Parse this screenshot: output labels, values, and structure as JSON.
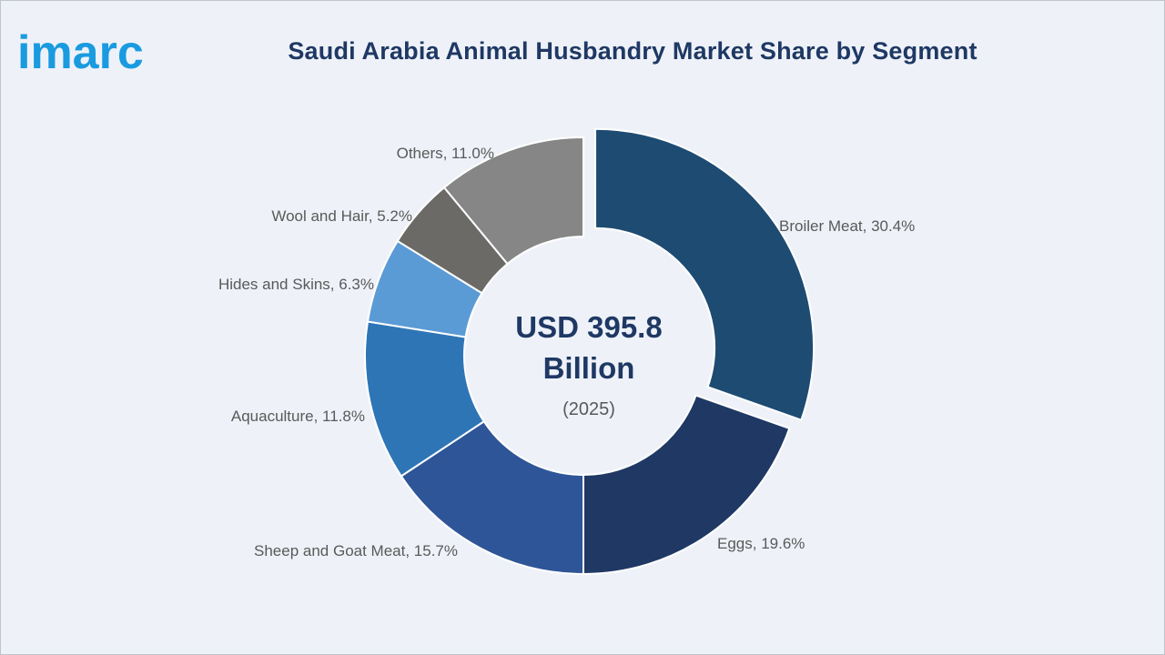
{
  "brand": {
    "logo_text": "imarc",
    "logo_color": "#1a9be0"
  },
  "chart_data": {
    "type": "pie",
    "title": "Saudi Arabia Animal Husbandry Market Share by Segment",
    "center_value": "USD 395.8",
    "center_unit": "Billion",
    "center_year": "(2025)",
    "donut": true,
    "exploded": "Broiler Meat",
    "slices": [
      {
        "label": "Broiler Meat, 30.4%",
        "name": "Broiler Meat",
        "value": 30.4,
        "color": "#1e4b72"
      },
      {
        "label": "Eggs, 19.6%",
        "name": "Eggs",
        "value": 19.6,
        "color": "#1f3864"
      },
      {
        "label": "Sheep and Goat Meat, 15.7%",
        "name": "Sheep and Goat Meat",
        "value": 15.7,
        "color": "#2e5597"
      },
      {
        "label": "Aquaculture, 11.8%",
        "name": "Aquaculture",
        "value": 11.8,
        "color": "#2e75b6"
      },
      {
        "label": "Hides and Skins, 6.3%",
        "name": "Hides and Skins",
        "value": 6.3,
        "color": "#5b9bd5"
      },
      {
        "label": "Wool and Hair, 5.2%",
        "name": "Wool and Hair",
        "value": 5.2,
        "color": "#6b6a66"
      },
      {
        "label": "Others, 11.0%",
        "name": "Others",
        "value": 11.0,
        "color": "#868686"
      }
    ]
  }
}
